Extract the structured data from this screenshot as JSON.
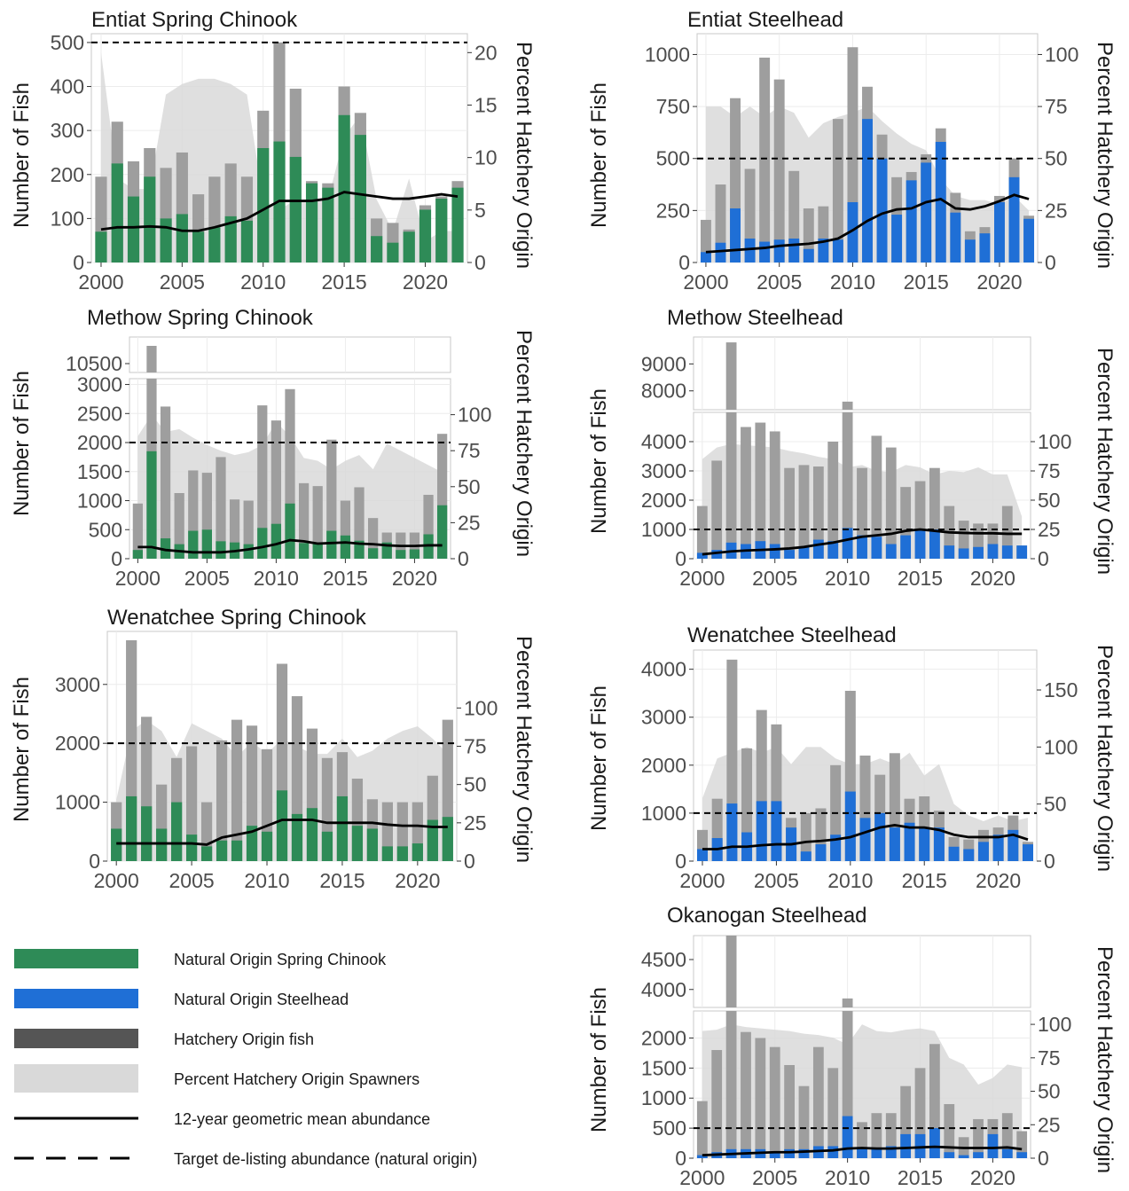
{
  "colors": {
    "natural_chinook": "#2e8b57",
    "natural_steelhead": "#1f6fd6",
    "hatchery": "#9e9e9e",
    "pct_area": "#d9d9d9",
    "mean_line": "#000000",
    "target_line": "#000000"
  },
  "legend": {
    "items": [
      {
        "label": "Natural Origin Spring Chinook",
        "key": "natural_chinook",
        "kind": "bar"
      },
      {
        "label": "Natural Origin Steelhead",
        "key": "natural_steelhead",
        "kind": "bar"
      },
      {
        "label": "Hatchery Origin fish",
        "key": "hatchery_legend",
        "kind": "bar"
      },
      {
        "label": "Percent Hatchery Origin Spawners",
        "key": "pct_area",
        "kind": "bar"
      },
      {
        "label": "12-year geometric mean abundance",
        "key": "mean_line",
        "kind": "line"
      },
      {
        "label": "Target de-listing abundance (natural origin)",
        "key": "target_line",
        "kind": "dash"
      }
    ]
  },
  "chart_data": [
    {
      "type": "bar",
      "title": "Entiat Spring Chinook",
      "ylabel": "Number of Fish",
      "y2label": "Percent Hatchery Origin",
      "species": "chinook",
      "years": [
        2000,
        2001,
        2002,
        2003,
        2004,
        2005,
        2006,
        2007,
        2008,
        2009,
        2010,
        2011,
        2012,
        2013,
        2014,
        2015,
        2016,
        2017,
        2018,
        2019,
        2020,
        2021,
        2022
      ],
      "natural": [
        70,
        225,
        150,
        195,
        100,
        110,
        70,
        80,
        105,
        95,
        260,
        275,
        240,
        180,
        170,
        335,
        290,
        60,
        45,
        70,
        120,
        145,
        170
      ],
      "total": [
        195,
        320,
        230,
        260,
        215,
        250,
        155,
        195,
        225,
        195,
        345,
        500,
        395,
        185,
        180,
        400,
        340,
        100,
        90,
        75,
        130,
        150,
        185
      ],
      "pct": [
        20,
        8,
        7,
        7,
        16,
        17,
        17.5,
        17.5,
        17,
        16,
        6,
        5,
        6,
        6,
        6,
        12,
        14,
        6,
        3,
        8,
        2,
        3,
        3
      ],
      "mean": [
        75,
        80,
        80,
        82,
        80,
        72,
        72,
        80,
        90,
        100,
        120,
        140,
        140,
        140,
        145,
        160,
        155,
        150,
        145,
        145,
        150,
        155,
        150
      ],
      "ylim": [
        0,
        520
      ],
      "yticks": [
        0,
        100,
        200,
        300,
        400,
        500
      ],
      "y2lim": [
        0,
        21.8
      ],
      "y2ticks": [
        0,
        5,
        10,
        15,
        20
      ],
      "target": 500,
      "xticks": [
        2000,
        2005,
        2010,
        2015,
        2020
      ]
    },
    {
      "type": "bar",
      "title": "Entiat Steelhead",
      "ylabel": "Number of Fish",
      "y2label": "Percent Hatchery Origin",
      "species": "steelhead",
      "years": [
        2000,
        2001,
        2002,
        2003,
        2004,
        2005,
        2006,
        2007,
        2008,
        2009,
        2010,
        2011,
        2012,
        2013,
        2014,
        2015,
        2016,
        2017,
        2018,
        2019,
        2020,
        2021,
        2022
      ],
      "natural": [
        50,
        95,
        260,
        115,
        100,
        110,
        115,
        65,
        115,
        110,
        290,
        690,
        500,
        230,
        395,
        480,
        580,
        240,
        110,
        140,
        290,
        410,
        210
      ],
      "total": [
        205,
        375,
        790,
        450,
        985,
        880,
        440,
        260,
        270,
        690,
        1035,
        845,
        615,
        410,
        435,
        520,
        645,
        335,
        150,
        170,
        320,
        500,
        225
      ],
      "pct": [
        75,
        75,
        70,
        75,
        70,
        75,
        72,
        60,
        67,
        70,
        72,
        75,
        68,
        62,
        57,
        54,
        40,
        32,
        30,
        30,
        28,
        32,
        25
      ],
      "mean": [
        50,
        55,
        60,
        65,
        70,
        80,
        85,
        90,
        100,
        115,
        155,
        200,
        235,
        255,
        260,
        290,
        305,
        260,
        255,
        270,
        295,
        325,
        305
      ],
      "ylim": [
        0,
        1100
      ],
      "yticks": [
        0,
        250,
        500,
        750,
        1000
      ],
      "y2lim": [
        0,
        110
      ],
      "y2ticks": [
        0,
        25,
        50,
        75,
        100
      ],
      "target": 500,
      "xticks": [
        2000,
        2005,
        2010,
        2015,
        2020
      ]
    },
    {
      "type": "bar",
      "title": "Methow Spring Chinook",
      "ylabel": "Number of Fish",
      "y2label": "Percent Hatchery Origin",
      "species": "chinook",
      "broken_axis": true,
      "years": [
        2000,
        2001,
        2002,
        2003,
        2004,
        2005,
        2006,
        2007,
        2008,
        2009,
        2010,
        2011,
        2012,
        2013,
        2014,
        2015,
        2016,
        2017,
        2018,
        2019,
        2020,
        2021,
        2022
      ],
      "natural": [
        150,
        1850,
        350,
        250,
        480,
        500,
        300,
        280,
        250,
        530,
        600,
        950,
        270,
        280,
        480,
        400,
        310,
        180,
        280,
        150,
        160,
        420,
        920
      ],
      "total": [
        950,
        10700,
        2620,
        1130,
        1520,
        1480,
        1750,
        1020,
        1000,
        2640,
        2380,
        2920,
        1300,
        1250,
        2050,
        1000,
        1230,
        700,
        450,
        450,
        450,
        1100,
        2150
      ],
      "pct": [
        85,
        100,
        88,
        90,
        84,
        79,
        75,
        72,
        74,
        79,
        95,
        85,
        70,
        68,
        62,
        68,
        72,
        62,
        80,
        75,
        70,
        65,
        60
      ],
      "mean": [
        200,
        200,
        150,
        130,
        110,
        110,
        110,
        130,
        160,
        200,
        250,
        320,
        300,
        260,
        270,
        280,
        260,
        250,
        230,
        220,
        220,
        230,
        230
      ],
      "ylim": [
        0,
        3100
      ],
      "yticks": [
        0,
        500,
        1000,
        1500,
        2000,
        2500,
        3000
      ],
      "upper_ylim": [
        10400,
        10800
      ],
      "upper_yticks": [
        10500
      ],
      "y2lim": [
        0,
        125
      ],
      "y2ticks": [
        0,
        25,
        50,
        75,
        100
      ],
      "target": 2000,
      "xticks": [
        2000,
        2005,
        2010,
        2015,
        2020
      ]
    },
    {
      "type": "bar",
      "title": "Methow Steelhead",
      "ylabel": "Number of Fish",
      "y2label": "Percent Hatchery Origin",
      "species": "steelhead",
      "broken_axis": true,
      "years": [
        2000,
        2001,
        2002,
        2003,
        2004,
        2005,
        2006,
        2007,
        2008,
        2009,
        2010,
        2011,
        2012,
        2013,
        2014,
        2015,
        2016,
        2017,
        2018,
        2019,
        2020,
        2021,
        2022
      ],
      "natural": [
        200,
        300,
        550,
        500,
        600,
        500,
        300,
        400,
        650,
        600,
        1050,
        800,
        750,
        500,
        800,
        1000,
        1000,
        450,
        350,
        400,
        500,
        450,
        450
      ],
      "total": [
        1800,
        3350,
        9800,
        4500,
        4650,
        4350,
        3100,
        3200,
        3150,
        4000,
        7600,
        3100,
        4200,
        3800,
        2450,
        2650,
        3100,
        1800,
        1300,
        1200,
        1200,
        1800,
        450
      ],
      "pct": [
        85,
        95,
        98,
        97,
        96,
        95,
        92,
        90,
        87,
        85,
        78,
        80,
        75,
        74,
        80,
        78,
        72,
        75,
        74,
        78,
        72,
        72,
        36
      ],
      "mean": [
        150,
        200,
        250,
        280,
        300,
        320,
        350,
        400,
        480,
        550,
        650,
        750,
        800,
        850,
        950,
        1000,
        950,
        900,
        880,
        870,
        870,
        850,
        850
      ],
      "ylim": [
        0,
        5000
      ],
      "yticks": [
        0,
        1000,
        2000,
        3000,
        4000
      ],
      "upper_ylim": [
        7300,
        10000
      ],
      "upper_yticks": [
        8000,
        9000
      ],
      "y2lim": [
        0,
        125
      ],
      "y2ticks": [
        0,
        25,
        50,
        75,
        100
      ],
      "target": 1000,
      "xticks": [
        2000,
        2005,
        2010,
        2015,
        2020
      ]
    },
    {
      "type": "bar",
      "title": "Wenatchee Spring Chinook",
      "ylabel": "Number of Fish",
      "y2label": "Percent Hatchery Origin",
      "species": "chinook",
      "years": [
        2000,
        2001,
        2002,
        2003,
        2004,
        2005,
        2006,
        2007,
        2008,
        2009,
        2010,
        2011,
        2012,
        2013,
        2014,
        2015,
        2016,
        2017,
        2018,
        2019,
        2020,
        2021,
        2022
      ],
      "natural": [
        550,
        1100,
        930,
        550,
        1000,
        450,
        250,
        350,
        350,
        600,
        500,
        1200,
        800,
        900,
        500,
        1100,
        600,
        550,
        250,
        250,
        300,
        700,
        750
      ],
      "total": [
        1000,
        3750,
        2450,
        1300,
        1750,
        1950,
        1000,
        2050,
        2400,
        2300,
        1900,
        3350,
        2800,
        2250,
        1750,
        1850,
        1400,
        1050,
        1000,
        1000,
        1000,
        1450,
        2400
      ],
      "pct": [
        40,
        85,
        92,
        85,
        68,
        90,
        85,
        80,
        68,
        78,
        70,
        80,
        75,
        70,
        70,
        80,
        68,
        72,
        80,
        85,
        88,
        80,
        70
      ],
      "mean": [
        300,
        300,
        300,
        300,
        300,
        300,
        280,
        400,
        450,
        500,
        600,
        700,
        700,
        700,
        650,
        650,
        650,
        650,
        620,
        600,
        600,
        580,
        580
      ],
      "ylim": [
        0,
        3900
      ],
      "yticks": [
        0,
        1000,
        2000,
        3000
      ],
      "y2lim": [
        0,
        150
      ],
      "y2ticks": [
        0,
        25,
        50,
        75,
        100
      ],
      "target": 2000,
      "xticks": [
        2000,
        2005,
        2010,
        2015,
        2020
      ]
    },
    {
      "type": "bar",
      "title": "Wenatchee Steelhead",
      "ylabel": "Number of Fish",
      "y2label": "Percent Hatchery Origin",
      "species": "steelhead",
      "years": [
        2000,
        2001,
        2002,
        2003,
        2004,
        2005,
        2006,
        2007,
        2008,
        2009,
        2010,
        2011,
        2012,
        2013,
        2014,
        2015,
        2016,
        2017,
        2018,
        2019,
        2020,
        2021,
        2022
      ],
      "natural": [
        250,
        480,
        1200,
        600,
        1250,
        1250,
        700,
        200,
        350,
        550,
        1450,
        900,
        1000,
        700,
        800,
        700,
        700,
        300,
        250,
        400,
        550,
        650,
        350
      ],
      "total": [
        650,
        1300,
        4200,
        2350,
        3150,
        2850,
        900,
        1000,
        1100,
        2000,
        3550,
        2200,
        1800,
        2250,
        1300,
        1350,
        1050,
        500,
        450,
        650,
        700,
        950,
        400
      ],
      "pct": [
        55,
        90,
        95,
        100,
        95,
        100,
        85,
        100,
        100,
        90,
        85,
        85,
        90,
        85,
        95,
        75,
        85,
        50,
        40,
        35,
        40,
        35,
        38
      ],
      "mean": [
        250,
        250,
        300,
        300,
        330,
        350,
        350,
        400,
        420,
        450,
        500,
        600,
        700,
        750,
        700,
        700,
        650,
        550,
        500,
        500,
        500,
        550,
        450
      ],
      "ylim": [
        0,
        4400
      ],
      "yticks": [
        0,
        1000,
        2000,
        3000,
        4000
      ],
      "y2lim": [
        0,
        185
      ],
      "y2ticks": [
        0,
        50,
        100,
        150
      ],
      "target": 1000,
      "xticks": [
        2000,
        2005,
        2010,
        2015,
        2020
      ]
    },
    {
      "type": "bar",
      "title": "Okanogan Steelhead",
      "ylabel": "Number of Fish",
      "y2label": "Percent Hatchery Origin",
      "species": "steelhead",
      "broken_axis": true,
      "years": [
        2000,
        2001,
        2002,
        2003,
        2004,
        2005,
        2006,
        2007,
        2008,
        2009,
        2010,
        2011,
        2012,
        2013,
        2014,
        2015,
        2016,
        2017,
        2018,
        2019,
        2020,
        2021,
        2022
      ],
      "natural": [
        50,
        100,
        150,
        150,
        150,
        100,
        150,
        150,
        200,
        200,
        700,
        150,
        150,
        200,
        400,
        400,
        500,
        100,
        50,
        100,
        400,
        150,
        100
      ],
      "total": [
        950,
        1800,
        4900,
        2100,
        2000,
        1850,
        1550,
        1200,
        1850,
        1500,
        3850,
        600,
        750,
        750,
        1200,
        1500,
        1900,
        900,
        350,
        650,
        650,
        750,
        450
      ],
      "pct": [
        95,
        96,
        100,
        98,
        97,
        96,
        95,
        93,
        92,
        90,
        85,
        100,
        95,
        94,
        96,
        97,
        95,
        75,
        70,
        55,
        60,
        70,
        68
      ],
      "mean": [
        50,
        60,
        70,
        80,
        90,
        100,
        100,
        110,
        120,
        130,
        160,
        170,
        160,
        160,
        170,
        180,
        190,
        180,
        170,
        170,
        170,
        180,
        150
      ],
      "ylim": [
        0,
        2450
      ],
      "yticks": [
        0,
        500,
        1000,
        1500,
        2000
      ],
      "upper_ylim": [
        3700,
        4900
      ],
      "upper_yticks": [
        4000,
        4500
      ],
      "y2lim": [
        0,
        110
      ],
      "y2ticks": [
        0,
        25,
        50,
        75,
        100
      ],
      "target": 500,
      "xticks": [
        2000,
        2005,
        2010,
        2015,
        2020
      ]
    }
  ]
}
